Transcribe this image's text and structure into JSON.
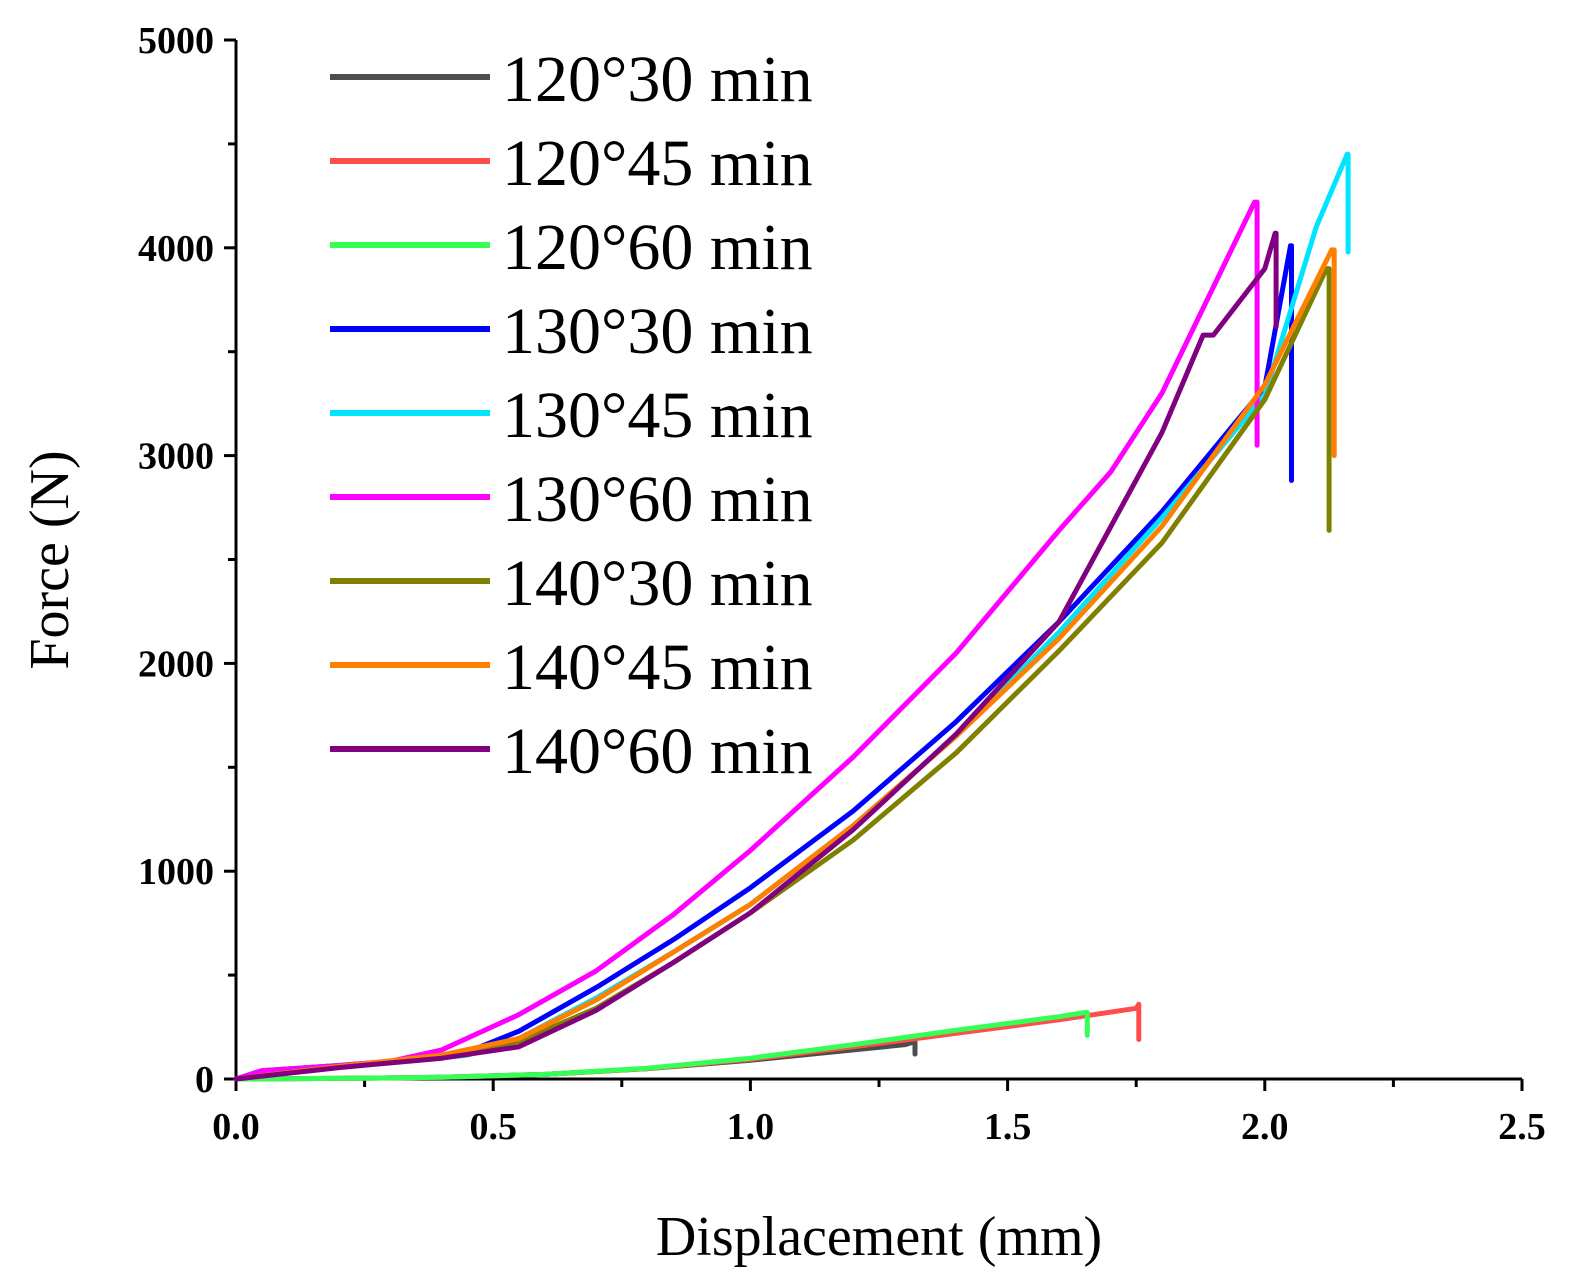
{
  "chart_data": {
    "type": "line",
    "title": "",
    "xlabel": "Displacement (mm)",
    "ylabel": "Force (N)",
    "xlim": [
      0,
      2.5
    ],
    "ylim": [
      0,
      5000
    ],
    "x_ticks": [
      0.0,
      0.5,
      1.0,
      1.5,
      2.0,
      2.5
    ],
    "x_tick_labels": [
      "0.0",
      "0.5",
      "1.0",
      "1.5",
      "2.0",
      "2.5"
    ],
    "y_ticks": [
      0,
      1000,
      2000,
      3000,
      4000,
      5000
    ],
    "y_tick_labels": [
      "0",
      "1000",
      "2000",
      "3000",
      "4000",
      "5000"
    ],
    "grid": false,
    "legend_position": "top-left",
    "series": [
      {
        "name": "120°30 min",
        "color": "#4d4d4d",
        "points": [
          [
            0,
            0
          ],
          [
            0.2,
            3
          ],
          [
            0.4,
            8
          ],
          [
            0.6,
            22
          ],
          [
            0.8,
            50
          ],
          [
            1.0,
            90
          ],
          [
            1.2,
            140
          ],
          [
            1.3,
            165
          ],
          [
            1.32,
            180
          ],
          [
            1.32,
            120
          ]
        ]
      },
      {
        "name": "120°45 min",
        "color": "#ff4d4d",
        "points": [
          [
            0,
            0
          ],
          [
            0.2,
            3
          ],
          [
            0.4,
            8
          ],
          [
            0.6,
            22
          ],
          [
            0.8,
            50
          ],
          [
            1.0,
            95
          ],
          [
            1.2,
            155
          ],
          [
            1.4,
            220
          ],
          [
            1.6,
            285
          ],
          [
            1.75,
            340
          ],
          [
            1.755,
            360
          ],
          [
            1.755,
            190
          ]
        ]
      },
      {
        "name": "120°60 min",
        "color": "#33ff55",
        "points": [
          [
            0,
            0
          ],
          [
            0.2,
            3
          ],
          [
            0.4,
            8
          ],
          [
            0.6,
            22
          ],
          [
            0.8,
            52
          ],
          [
            1.0,
            100
          ],
          [
            1.2,
            165
          ],
          [
            1.4,
            235
          ],
          [
            1.6,
            300
          ],
          [
            1.65,
            320
          ],
          [
            1.655,
            320
          ],
          [
            1.655,
            210
          ]
        ]
      },
      {
        "name": "130°30 min",
        "color": "#0000ff",
        "points": [
          [
            0,
            0
          ],
          [
            0.05,
            40
          ],
          [
            0.2,
            65
          ],
          [
            0.35,
            95
          ],
          [
            0.45,
            130
          ],
          [
            0.55,
            230
          ],
          [
            0.7,
            440
          ],
          [
            0.85,
            670
          ],
          [
            1.0,
            920
          ],
          [
            1.2,
            1290
          ],
          [
            1.4,
            1720
          ],
          [
            1.6,
            2200
          ],
          [
            1.8,
            2730
          ],
          [
            2.0,
            3330
          ],
          [
            2.05,
            4010
          ],
          [
            2.052,
            4010
          ],
          [
            2.052,
            2880
          ]
        ]
      },
      {
        "name": "130°45 min",
        "color": "#00e5ff",
        "points": [
          [
            0,
            0
          ],
          [
            0.05,
            40
          ],
          [
            0.2,
            65
          ],
          [
            0.35,
            90
          ],
          [
            0.45,
            115
          ],
          [
            0.55,
            195
          ],
          [
            0.7,
            390
          ],
          [
            0.85,
            610
          ],
          [
            1.0,
            840
          ],
          [
            1.2,
            1220
          ],
          [
            1.4,
            1650
          ],
          [
            1.6,
            2150
          ],
          [
            1.8,
            2700
          ],
          [
            2.0,
            3290
          ],
          [
            2.1,
            4100
          ],
          [
            2.16,
            4450
          ],
          [
            2.162,
            4450
          ],
          [
            2.162,
            3980
          ]
        ]
      },
      {
        "name": "130°60 min",
        "color": "#ff00ff",
        "points": [
          [
            0,
            0
          ],
          [
            0.05,
            40
          ],
          [
            0.2,
            65
          ],
          [
            0.3,
            85
          ],
          [
            0.4,
            140
          ],
          [
            0.55,
            310
          ],
          [
            0.7,
            520
          ],
          [
            0.85,
            790
          ],
          [
            1.0,
            1100
          ],
          [
            1.2,
            1550
          ],
          [
            1.4,
            2050
          ],
          [
            1.6,
            2640
          ],
          [
            1.7,
            2920
          ],
          [
            1.8,
            3300
          ],
          [
            1.98,
            4220
          ],
          [
            1.985,
            4220
          ],
          [
            1.985,
            3050
          ]
        ]
      },
      {
        "name": "140°30 min",
        "color": "#808000",
        "points": [
          [
            0,
            0
          ],
          [
            0.2,
            60
          ],
          [
            0.4,
            110
          ],
          [
            0.55,
            180
          ],
          [
            0.7,
            340
          ],
          [
            0.85,
            560
          ],
          [
            1.0,
            800
          ],
          [
            1.2,
            1150
          ],
          [
            1.4,
            1570
          ],
          [
            1.6,
            2060
          ],
          [
            1.8,
            2580
          ],
          [
            2.0,
            3270
          ],
          [
            2.12,
            3900
          ],
          [
            2.125,
            3900
          ],
          [
            2.125,
            2640
          ]
        ]
      },
      {
        "name": "140°45 min",
        "color": "#ff8000",
        "points": [
          [
            0,
            0
          ],
          [
            0.2,
            60
          ],
          [
            0.4,
            115
          ],
          [
            0.55,
            195
          ],
          [
            0.7,
            380
          ],
          [
            0.85,
            610
          ],
          [
            1.0,
            840
          ],
          [
            1.2,
            1220
          ],
          [
            1.4,
            1650
          ],
          [
            1.6,
            2120
          ],
          [
            1.8,
            2660
          ],
          [
            2.0,
            3340
          ],
          [
            2.13,
            3990
          ],
          [
            2.135,
            3990
          ],
          [
            2.135,
            3000
          ]
        ]
      },
      {
        "name": "140°60 min",
        "color": "#800080",
        "points": [
          [
            0,
            0
          ],
          [
            0.2,
            55
          ],
          [
            0.4,
            100
          ],
          [
            0.55,
            155
          ],
          [
            0.7,
            330
          ],
          [
            0.85,
            560
          ],
          [
            1.0,
            800
          ],
          [
            1.2,
            1200
          ],
          [
            1.4,
            1660
          ],
          [
            1.6,
            2200
          ],
          [
            1.8,
            3110
          ],
          [
            1.88,
            3580
          ],
          [
            1.9,
            3580
          ],
          [
            2.0,
            3900
          ],
          [
            2.02,
            4070
          ],
          [
            2.022,
            4070
          ],
          [
            2.022,
            3620
          ]
        ]
      }
    ]
  }
}
